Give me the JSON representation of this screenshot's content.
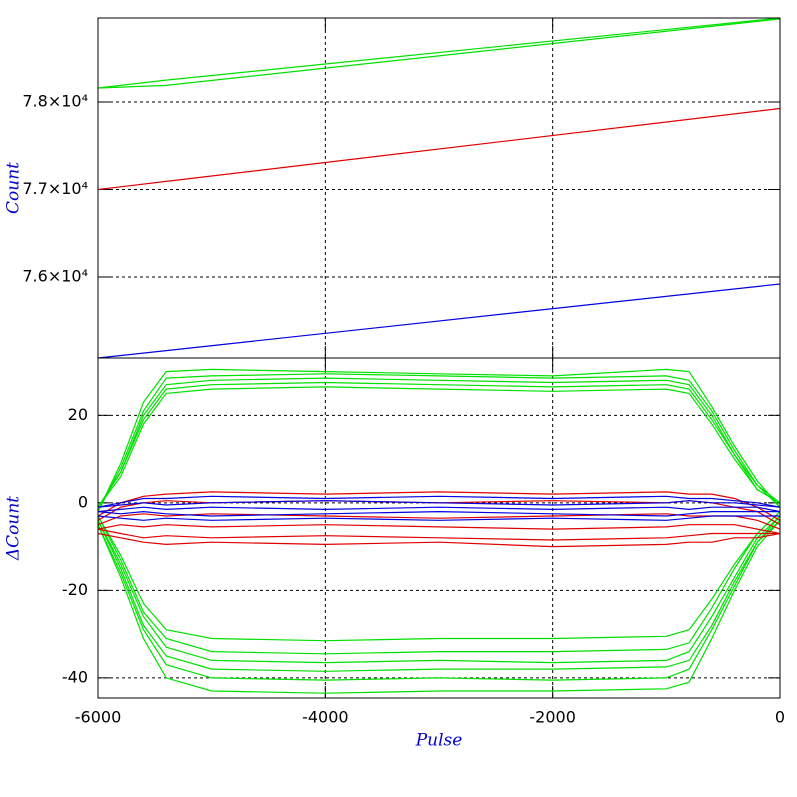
{
  "chart_data": [
    {
      "type": "line",
      "ylabel": "Count",
      "x": [
        -6000,
        -5400,
        0
      ],
      "xlim": [
        -6000,
        0
      ],
      "xticks": [
        -6000,
        -4000,
        -2000,
        0
      ],
      "ylim": [
        75074,
        78960
      ],
      "yticks": [
        {
          "value": 76000,
          "label": "7.6×10⁴"
        },
        {
          "value": 77000,
          "label": "7.7×10⁴"
        },
        {
          "value": 78000,
          "label": "7.8×10⁴"
        }
      ],
      "grid": true,
      "series": [
        {
          "color": "#00e000",
          "values": [
            78160,
            78250,
            78960
          ]
        },
        {
          "color": "#00e000",
          "values": [
            78160,
            78190,
            78950
          ]
        },
        {
          "color": "#e00000",
          "values": [
            77000,
            77093,
            77926
          ]
        },
        {
          "color": "#0000e0",
          "values": [
            75074,
            75159,
            75920
          ]
        }
      ]
    },
    {
      "type": "line",
      "xlabel": "Pulse",
      "ylabel": "ΔCount",
      "x": [
        -6000,
        -5800,
        -5600,
        -5400,
        -5000,
        -4000,
        -3000,
        -2000,
        -1000,
        -800,
        -600,
        -400,
        -200,
        0
      ],
      "xlim": [
        -6000,
        0
      ],
      "xticks": [
        -6000,
        -4000,
        -2000,
        0
      ],
      "ylim": [
        -44.6,
        33.1
      ],
      "yticks": [
        -40,
        -20,
        0,
        20
      ],
      "grid": true,
      "series": [
        {
          "color": "#00e000",
          "values": [
            -2,
            9,
            23,
            30,
            30.5,
            30,
            29.5,
            29,
            30.5,
            30,
            22,
            13,
            5,
            -1
          ]
        },
        {
          "color": "#00e000",
          "values": [
            -2,
            8,
            21,
            28.5,
            29,
            29.5,
            29,
            28.5,
            29,
            28,
            21,
            12,
            4,
            -1
          ]
        },
        {
          "color": "#00e000",
          "values": [
            -1,
            7,
            20,
            27,
            28,
            28.5,
            28,
            27.5,
            28,
            27,
            20,
            11,
            4,
            0
          ]
        },
        {
          "color": "#00e000",
          "values": [
            -1,
            7,
            19,
            26,
            27,
            27.5,
            27,
            26.5,
            27,
            26,
            19,
            11,
            3,
            0
          ]
        },
        {
          "color": "#00e000",
          "values": [
            -1,
            6,
            18,
            25,
            26,
            26.5,
            26,
            25.5,
            26,
            25,
            18,
            10,
            3,
            0
          ]
        },
        {
          "color": "#00e000",
          "values": [
            -3,
            -12,
            -23,
            -29,
            -31,
            -31.5,
            -31,
            -31,
            -30.5,
            -29,
            -22,
            -14,
            -7,
            -2
          ]
        },
        {
          "color": "#00e000",
          "values": [
            -3,
            -13,
            -25,
            -31,
            -34,
            -34.5,
            -34,
            -34,
            -33.5,
            -32,
            -24,
            -15,
            -7,
            -2
          ]
        },
        {
          "color": "#00e000",
          "values": [
            -4,
            -14,
            -26,
            -33,
            -36,
            -36.5,
            -36,
            -36.5,
            -36,
            -34,
            -26,
            -17,
            -8,
            -3
          ]
        },
        {
          "color": "#00e000",
          "values": [
            -4,
            -15,
            -28,
            -35,
            -38,
            -38.5,
            -38,
            -38,
            -37.5,
            -36,
            -28,
            -18,
            -9,
            -3
          ]
        },
        {
          "color": "#00e000",
          "values": [
            -5,
            -16,
            -29,
            -37,
            -40,
            -40.5,
            -40,
            -40.5,
            -40,
            -38,
            -29,
            -19,
            -9,
            -4
          ]
        },
        {
          "color": "#00e000",
          "values": [
            -5,
            -17,
            -31,
            -40,
            -43,
            -43.5,
            -43,
            -43,
            -42.5,
            -41,
            -31,
            -20,
            -10,
            -4
          ]
        },
        {
          "color": "#e00000",
          "values": [
            -3,
            0,
            1.5,
            2,
            2.5,
            2,
            2.5,
            2,
            2.5,
            2,
            2,
            1,
            -1,
            -4
          ]
        },
        {
          "color": "#e00000",
          "values": [
            -4,
            -1,
            0,
            0.5,
            0,
            0.5,
            0,
            0.5,
            0,
            0.5,
            0,
            -1,
            -2,
            -5
          ]
        },
        {
          "color": "#e00000",
          "values": [
            -5,
            -3,
            -2.5,
            -3,
            -2.5,
            -3,
            -3.5,
            -3,
            -2.5,
            -3,
            -3,
            -3,
            -4,
            -6
          ]
        },
        {
          "color": "#e00000",
          "values": [
            -6,
            -5,
            -5.5,
            -5,
            -5.5,
            -5,
            -5.5,
            -6,
            -5.5,
            -5,
            -5,
            -5,
            -6,
            -7
          ]
        },
        {
          "color": "#e00000",
          "values": [
            -6,
            -7,
            -8,
            -7.5,
            -8,
            -7.5,
            -8,
            -8.5,
            -8,
            -7.5,
            -7,
            -7,
            -7,
            -7
          ]
        },
        {
          "color": "#e00000",
          "values": [
            -7,
            -8,
            -9,
            -9.5,
            -9,
            -9.5,
            -9,
            -10,
            -9.5,
            -9,
            -9,
            -8,
            -8,
            -7
          ]
        },
        {
          "color": "#0000e0",
          "values": [
            -1,
            0,
            1,
            1,
            1.5,
            1,
            1.5,
            1,
            1.5,
            1,
            1,
            0.5,
            0,
            -1
          ]
        },
        {
          "color": "#0000e0",
          "values": [
            -1,
            -0.5,
            0,
            -0.5,
            0,
            0.5,
            0,
            -0.5,
            0,
            0.5,
            0,
            0,
            -0.5,
            -1
          ]
        },
        {
          "color": "#0000e0",
          "values": [
            -2,
            -1.5,
            -1,
            -1.5,
            -1,
            -1.5,
            -1,
            -1.5,
            -1,
            -1.5,
            -1,
            -1,
            -1,
            -2
          ]
        },
        {
          "color": "#0000e0",
          "values": [
            -2,
            -2.5,
            -2,
            -2.5,
            -3,
            -2.5,
            -2,
            -2.5,
            -3,
            -2.5,
            -2,
            -2,
            -2,
            -2
          ]
        },
        {
          "color": "#0000e0",
          "values": [
            -3,
            -3.5,
            -4,
            -3.5,
            -4,
            -3.5,
            -4,
            -3.5,
            -4,
            -3.5,
            -3,
            -3,
            -3,
            -3
          ]
        }
      ]
    }
  ]
}
